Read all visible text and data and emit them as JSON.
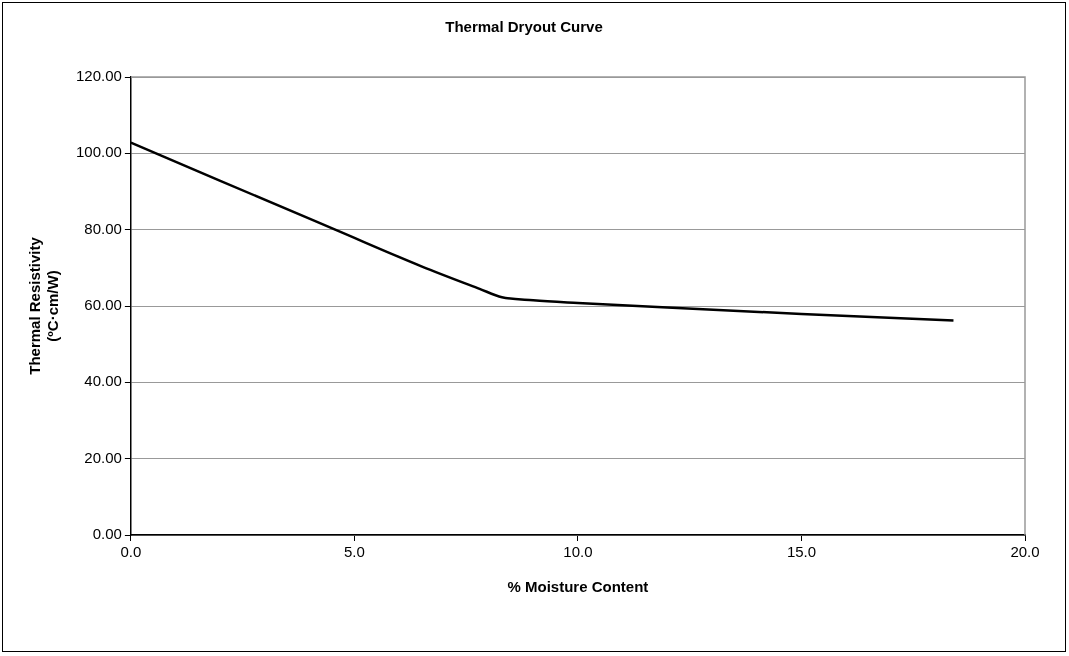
{
  "chart_data": {
    "type": "line",
    "title": "Thermal Dryout Curve",
    "xlabel": "% Moisture Content",
    "ylabel": "Thermal Resistivity\n(ºC·cm/W)",
    "x": [
      0,
      2,
      4.57,
      6.5,
      7.8,
      8.3,
      9,
      10,
      12,
      15,
      18.4
    ],
    "series": [
      {
        "color": "#000000",
        "values": [
          102.8,
          92.8,
          80,
          70.4,
          64.5,
          62.3,
          61.5,
          60.8,
          59.6,
          57.9,
          56.2
        ]
      }
    ],
    "xlim": [
      0,
      20
    ],
    "xticks": [
      {
        "value": 0,
        "label": "0.0"
      },
      {
        "value": 5,
        "label": "5.0"
      },
      {
        "value": 10,
        "label": "10.0"
      },
      {
        "value": 15,
        "label": "15.0"
      },
      {
        "value": 20,
        "label": "20.0"
      }
    ],
    "ylim": [
      0,
      120
    ],
    "yticks": [
      {
        "value": 0,
        "label": "0.00"
      },
      {
        "value": 20,
        "label": "20.00"
      },
      {
        "value": 40,
        "label": "40.00"
      },
      {
        "value": 60,
        "label": "60.00"
      },
      {
        "value": 80,
        "label": "80.00"
      },
      {
        "value": 100,
        "label": "100.00"
      },
      {
        "value": 120,
        "label": "120.00"
      }
    ],
    "grid": "y",
    "legend": false,
    "marker": "none",
    "line_style": "solid"
  }
}
